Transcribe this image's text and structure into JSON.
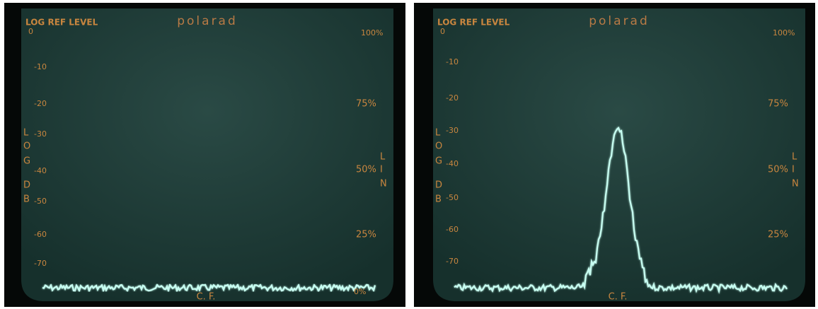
{
  "panels": [
    {
      "header": "LOG REF LEVEL",
      "ref": "0",
      "brand": "polarad",
      "lin_top": "100%",
      "log_ticks": [
        "-10",
        "-20",
        "-30",
        "-40",
        "-50",
        "-60",
        "-70"
      ],
      "lin_ticks": [
        "75%",
        "50%",
        "25%"
      ],
      "lin_bottom": "0%",
      "log_axis": [
        "L",
        "O",
        "G",
        "D",
        "B"
      ],
      "lin_axis": [
        "L",
        "I",
        "N"
      ],
      "marker": "C. F."
    },
    {
      "header": "LOG REF LEVEL",
      "ref": "0",
      "brand": "polarad",
      "lin_top": "100%",
      "log_ticks": [
        "-10",
        "-20",
        "-30",
        "-40",
        "-50",
        "-60",
        "-70"
      ],
      "lin_ticks": [
        "75%",
        "50%",
        "25%"
      ],
      "log_axis": [
        "L",
        "O",
        "G",
        "D",
        "B"
      ],
      "lin_axis": [
        "L",
        "I",
        "N"
      ],
      "marker": "C. F."
    }
  ]
}
